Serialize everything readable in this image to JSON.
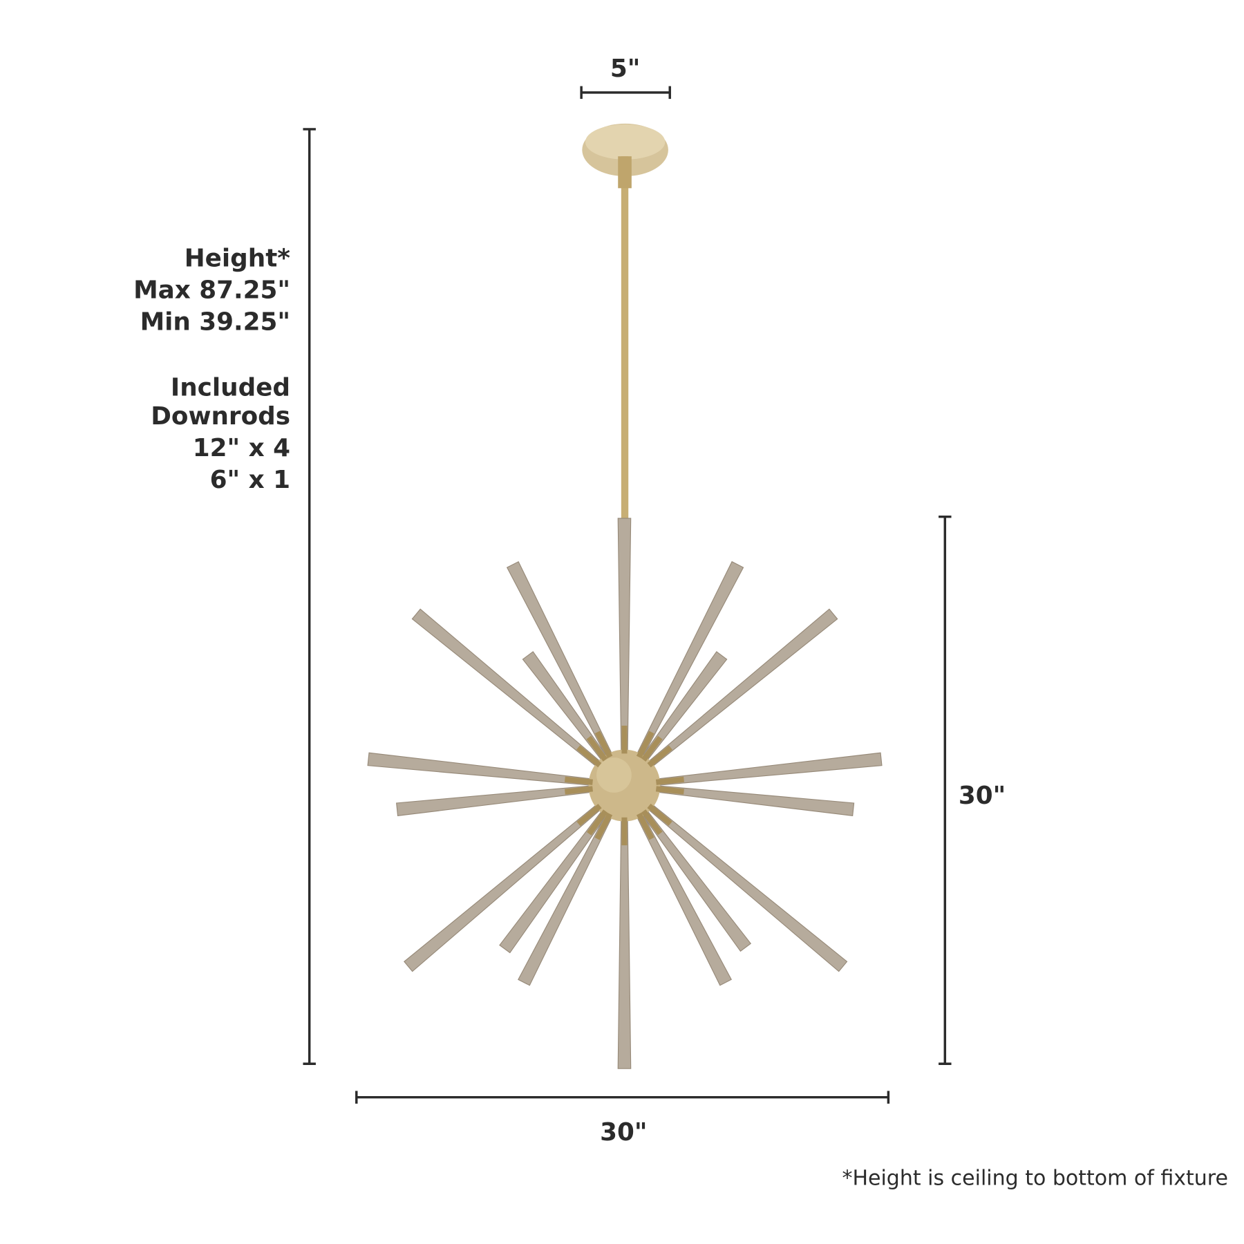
{
  "dimensions": {
    "canopy_width": "5\"",
    "fixture_height": "30\"",
    "fixture_width": "30\"",
    "overall_height": {
      "title": "Height*",
      "max": "Max 87.25\"",
      "min": "Min 39.25\""
    },
    "downrods": {
      "line1": "Included",
      "line2": "Downrods",
      "line3": "12\" x 4",
      "line4": "6\" x 1"
    }
  },
  "footnote": "*Height is ceiling to bottom of fixture",
  "colors": {
    "text": "#2b2b2b",
    "brass": "#d2c096",
    "wood_spike": "#b6ab9c"
  }
}
